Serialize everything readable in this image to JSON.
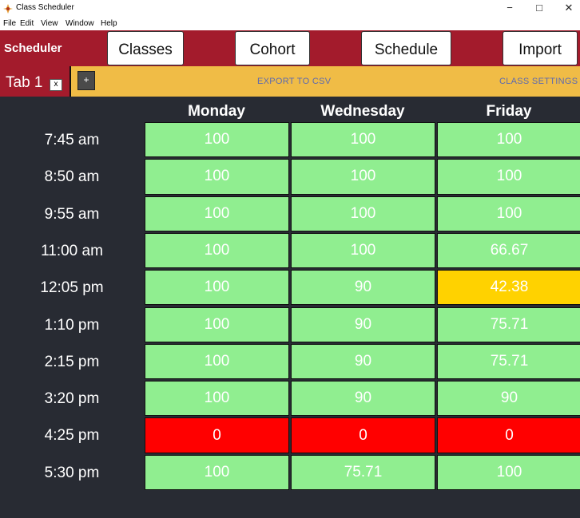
{
  "window": {
    "title": "Class Scheduler",
    "min_glyph": "−",
    "max_glyph": "□",
    "close_glyph": "✕"
  },
  "menu": [
    "File",
    "Edit",
    "View",
    "Window",
    "Help"
  ],
  "navbar": {
    "brand": "Scheduler",
    "buttons": [
      "Classes",
      "Cohort",
      "Schedule",
      "Import"
    ]
  },
  "tabs": {
    "active_label": "Tab 1",
    "close_label": "x",
    "add_label": "+",
    "export_label": "EXPORT TO CSV",
    "settings_label": "CLASS SETTINGS"
  },
  "schedule": {
    "days": [
      "Monday",
      "Wednesday",
      "Friday"
    ],
    "rows": [
      {
        "time": "7:45 am",
        "values": [
          "100",
          "100",
          "100"
        ],
        "status": [
          "ok",
          "ok",
          "ok"
        ]
      },
      {
        "time": "8:50 am",
        "values": [
          "100",
          "100",
          "100"
        ],
        "status": [
          "ok",
          "ok",
          "ok"
        ]
      },
      {
        "time": "9:55 am",
        "values": [
          "100",
          "100",
          "100"
        ],
        "status": [
          "ok",
          "ok",
          "ok"
        ]
      },
      {
        "time": "11:00 am",
        "values": [
          "100",
          "100",
          "66.67"
        ],
        "status": [
          "ok",
          "ok",
          "ok"
        ]
      },
      {
        "time": "12:05 pm",
        "values": [
          "100",
          "90",
          "42.38"
        ],
        "status": [
          "ok",
          "ok",
          "warning"
        ]
      },
      {
        "time": "1:10 pm",
        "values": [
          "100",
          "90",
          "75.71"
        ],
        "status": [
          "ok",
          "ok",
          "ok"
        ]
      },
      {
        "time": "2:15 pm",
        "values": [
          "100",
          "90",
          "75.71"
        ],
        "status": [
          "ok",
          "ok",
          "ok"
        ]
      },
      {
        "time": "3:20 pm",
        "values": [
          "100",
          "90",
          "90"
        ],
        "status": [
          "ok",
          "ok",
          "ok"
        ]
      },
      {
        "time": "4:25 pm",
        "values": [
          "0",
          "0",
          "0"
        ],
        "status": [
          "bad",
          "bad",
          "bad"
        ]
      },
      {
        "time": "5:30 pm",
        "values": [
          "100",
          "75.71",
          "100"
        ],
        "status": [
          "ok",
          "ok",
          "ok"
        ]
      }
    ]
  },
  "colors": {
    "ok": "#90ee90",
    "warning": "#ffd200",
    "bad": "#ff0000",
    "accent": "#a31b2c",
    "tabbar": "#f0bc46",
    "background": "#282b33"
  },
  "icons": {
    "app": "app-logo-icon"
  }
}
